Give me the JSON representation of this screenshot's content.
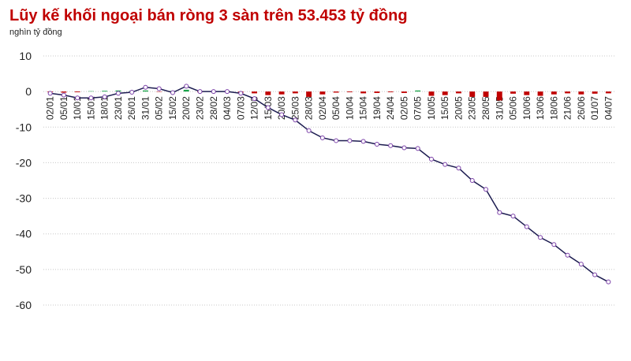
{
  "chart_data": {
    "type": "line_bar",
    "title": "Lũy kế khối ngoại bán ròng 3 sàn trên 53.453 tỷ đồng",
    "subtitle": "nghìn tỷ đồng",
    "categories": [
      "02/01",
      "05/01",
      "10/01",
      "15/01",
      "18/01",
      "23/01",
      "26/01",
      "31/01",
      "05/02",
      "15/02",
      "20/02",
      "23/02",
      "28/02",
      "04/03",
      "07/03",
      "12/03",
      "15/03",
      "20/03",
      "25/03",
      "28/03",
      "02/04",
      "05/04",
      "10/04",
      "15/04",
      "19/04",
      "24/04",
      "02/05",
      "07/05",
      "10/05",
      "15/05",
      "20/05",
      "23/05",
      "28/05",
      "31/05",
      "05/06",
      "10/06",
      "13/06",
      "18/06",
      "21/06",
      "26/06",
      "01/07",
      "04/07"
    ],
    "series": [
      {
        "kind": "bar",
        "positive_color": "#1aa34a",
        "negative_color": "#c00000",
        "values": [
          -0.2,
          -0.3,
          -0.2,
          0.1,
          0.2,
          0.3,
          0.2,
          0.3,
          -0.1,
          0.2,
          0.5,
          -0.2,
          -0.1,
          0.1,
          -0.3,
          -0.5,
          -1,
          -0.8,
          -0.5,
          -1.5,
          -0.8,
          -0.3,
          -0.2,
          -0.5,
          -0.4,
          -0.2,
          -0.4,
          0.3,
          -1.2,
          -1,
          -0.5,
          -1.5,
          -1.5,
          -2.5,
          -0.6,
          -1,
          -1.2,
          -0.8,
          -0.5,
          -0.8,
          -0.6,
          -0.5
        ]
      },
      {
        "kind": "line",
        "color": "#1c1c50",
        "marker_color": "#7a3fa8",
        "values": [
          -0.5,
          -1,
          -1.8,
          -1.8,
          -1.5,
          -0.5,
          -0.2,
          1.2,
          0.8,
          -0.3,
          1.5,
          0,
          0,
          0,
          -0.5,
          -2,
          -4.5,
          -6.5,
          -8,
          -11,
          -13,
          -13.8,
          -13.8,
          -14,
          -14.8,
          -15.2,
          -15.8,
          -16,
          -19,
          -20.5,
          -21.5,
          -25,
          -27.5,
          -34,
          -35,
          -38,
          -41,
          -43,
          -46,
          -48.5,
          -51.5,
          -53.5
        ]
      }
    ],
    "ylim": [
      -60,
      10
    ],
    "yticks": [
      10,
      0,
      -10,
      -20,
      -30,
      -40,
      -50,
      -60
    ],
    "grid": true
  }
}
